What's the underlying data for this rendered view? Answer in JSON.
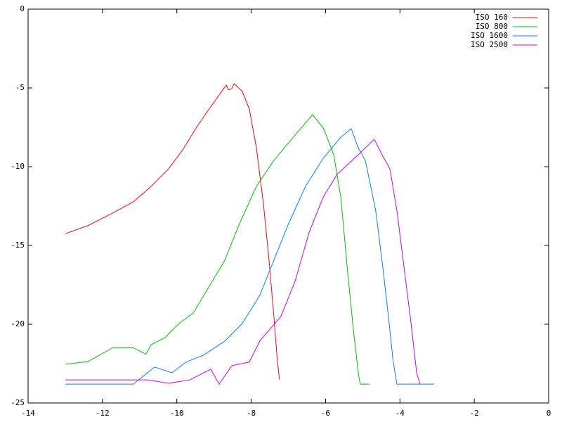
{
  "chart_data": {
    "type": "line",
    "xlim": [
      -14,
      0
    ],
    "xticks": [
      -14,
      -12,
      -10,
      -8,
      -6,
      -4,
      -2,
      0
    ],
    "ylim": [
      -25,
      0
    ],
    "yticks": [
      -25,
      -20,
      -15,
      -10,
      -5,
      0
    ],
    "legend": "top-right",
    "series": [
      {
        "name": "ISO 160",
        "color": "#ff0000",
        "x": [
          -13,
          -12.4,
          -11.73,
          -11.17,
          -10.69,
          -10.22,
          -9.84,
          -9.46,
          -9.09,
          -8.67,
          -8.61,
          -8.52,
          -8.46,
          -8.24,
          -8.05,
          -7.86,
          -7.67,
          -7.52,
          -7.39,
          -7.3,
          -7.24
        ],
        "values": [
          -14.25,
          -13.75,
          -12.95,
          -12.23,
          -11.25,
          -10.13,
          -8.93,
          -7.46,
          -6.2,
          -4.82,
          -5.13,
          -5.04,
          -4.73,
          -5.22,
          -6.34,
          -8.8,
          -12.37,
          -15.94,
          -19.5,
          -22.2,
          -23.5
        ]
      },
      {
        "name": "ISO 800",
        "color": "#00c000",
        "x": [
          -13,
          -12.39,
          -11.73,
          -11.17,
          -10.83,
          -10.69,
          -10.32,
          -9.94,
          -9.56,
          -9.18,
          -8.71,
          -8.33,
          -7.86,
          -7.39,
          -6.82,
          -6.35,
          -6.06,
          -5.78,
          -5.59,
          -5.4,
          -5.25,
          -5.12,
          -5.07,
          -4.82
        ],
        "values": [
          -22.54,
          -22.37,
          -21.5,
          -21.5,
          -21.9,
          -21.3,
          -20.85,
          -19.95,
          -19.3,
          -17.8,
          -15.94,
          -13.7,
          -11.25,
          -9.6,
          -8.0,
          -6.7,
          -7.54,
          -9.24,
          -11.92,
          -16.83,
          -20.4,
          -23.08,
          -23.8,
          -23.8
        ]
      },
      {
        "name": "ISO 1600",
        "color": "#0080ff",
        "x": [
          -13,
          -11.17,
          -10.6,
          -10.13,
          -9.75,
          -9.28,
          -8.71,
          -8.24,
          -7.77,
          -7.39,
          -7.01,
          -6.54,
          -6.06,
          -5.59,
          -5.31,
          -5.12,
          -4.93,
          -4.65,
          -4.46,
          -4.31,
          -4.18,
          -4.08,
          -3.08
        ],
        "values": [
          -23.8,
          -23.8,
          -22.72,
          -23.08,
          -22.4,
          -21.96,
          -21.07,
          -19.95,
          -18.17,
          -15.94,
          -13.7,
          -11.25,
          -9.46,
          -8.13,
          -7.59,
          -8.8,
          -9.6,
          -12.8,
          -16.38,
          -19.5,
          -22.4,
          -23.8,
          -23.8
        ]
      },
      {
        "name": "ISO 2500",
        "color": "#c000ff",
        "x": [
          -13,
          -11.17,
          -10.79,
          -10.22,
          -9.65,
          -9.09,
          -8.86,
          -8.52,
          -8.05,
          -7.77,
          -7.2,
          -6.82,
          -6.44,
          -6.06,
          -5.69,
          -5.12,
          -4.69,
          -4.46,
          -4.27,
          -4.08,
          -3.89,
          -3.7,
          -3.55,
          -3.46
        ],
        "values": [
          -23.53,
          -23.53,
          -23.53,
          -23.75,
          -23.53,
          -22.86,
          -23.8,
          -22.63,
          -22.4,
          -21.07,
          -19.5,
          -17.28,
          -14.15,
          -11.92,
          -10.49,
          -9.24,
          -8.26,
          -9.33,
          -10.13,
          -12.8,
          -16.38,
          -19.95,
          -23.08,
          -23.8
        ]
      }
    ]
  }
}
